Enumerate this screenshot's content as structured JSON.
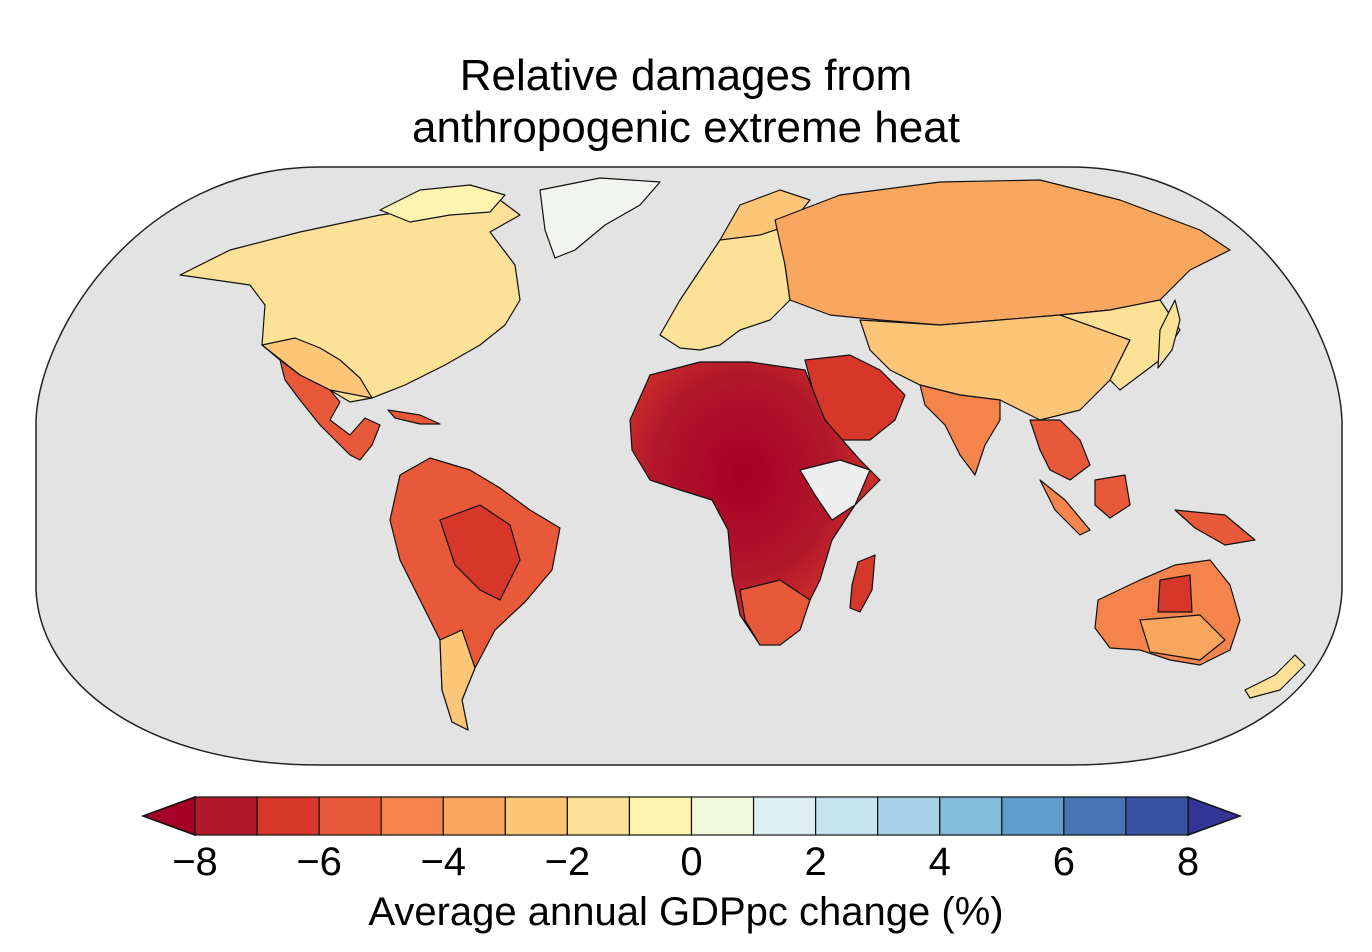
{
  "title": {
    "line1": "Relative damages from",
    "line2": "anthropogenic extreme heat"
  },
  "colorbar": {
    "label": "Average annual GDPpc change (%)",
    "ticks": [
      "−8",
      "−6",
      "−4",
      "−2",
      "0",
      "2",
      "4",
      "6",
      "8"
    ],
    "tick_values": [
      -8,
      -6,
      -4,
      -2,
      0,
      2,
      4,
      6,
      8
    ],
    "bin_edges": [
      -8,
      -7,
      -6,
      -5,
      -4,
      -3,
      -2,
      -1,
      0,
      1,
      2,
      3,
      4,
      5,
      6,
      7,
      8
    ],
    "colors": [
      "#b2182b",
      "#d6372a",
      "#e8593a",
      "#f4844b",
      "#f9a65f",
      "#fcc679",
      "#fde197",
      "#fff4b0",
      "#f2f9db",
      "#deeff2",
      "#c5e4ef",
      "#a7d2e7",
      "#84bcdc",
      "#5f9ccc",
      "#4575b4",
      "#3953a4"
    ],
    "under_color": "#a50026",
    "over_color": "#313695"
  },
  "map": {
    "ocean_color": "#e3e3e3",
    "no_data_color": "#eeeeee"
  }
}
